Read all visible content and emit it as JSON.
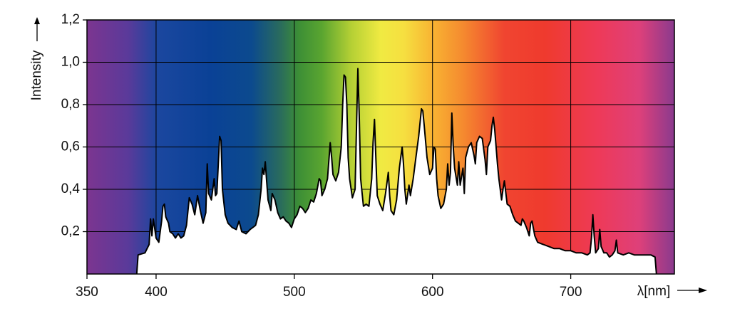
{
  "chart_data": {
    "type": "area",
    "x_label": "λ[nm]",
    "y_label": "Intensity",
    "xlim": [
      350,
      775
    ],
    "ylim": [
      0,
      1.2
    ],
    "xticks": [
      350,
      400,
      500,
      600,
      700
    ],
    "yticks": [
      {
        "value": 0.2,
        "label": "0,2"
      },
      {
        "value": 0.4,
        "label": "0,4"
      },
      {
        "value": 0.6,
        "label": "0,6"
      },
      {
        "value": 0.8,
        "label": "0,8"
      },
      {
        "value": 1.0,
        "label": "1,0"
      },
      {
        "value": 1.2,
        "label": "1,2"
      }
    ],
    "grid": true,
    "x": [
      386,
      387,
      392,
      395,
      396,
      397,
      398,
      400,
      402,
      404,
      405,
      406,
      407,
      409,
      410,
      412,
      414,
      416,
      418,
      420,
      422,
      424,
      426,
      428,
      430,
      432,
      434,
      436,
      437,
      438,
      440,
      442,
      443,
      444,
      445,
      446,
      447,
      448,
      450,
      452,
      455,
      458,
      460,
      462,
      465,
      468,
      470,
      472,
      474,
      476,
      477,
      478,
      479,
      480,
      481,
      483,
      484,
      486,
      488,
      490,
      492,
      494,
      496,
      498,
      500,
      502,
      504,
      506,
      508,
      510,
      512,
      514,
      516,
      518,
      519,
      520,
      522,
      524,
      526,
      527,
      528,
      530,
      532,
      534,
      535,
      536,
      537,
      538,
      539,
      540,
      542,
      544,
      545,
      546,
      547,
      548,
      550,
      552,
      554,
      556,
      557,
      558,
      559,
      560,
      562,
      564,
      566,
      568,
      569,
      570,
      572,
      574,
      576,
      578,
      579,
      580,
      581,
      583,
      584,
      586,
      587,
      588,
      590,
      592,
      593,
      594,
      596,
      598,
      600,
      601,
      602,
      603,
      604,
      606,
      608,
      610,
      611,
      612,
      613,
      614,
      615,
      616,
      618,
      619,
      620,
      622,
      623,
      624,
      626,
      628,
      630,
      631,
      632,
      634,
      636,
      638,
      639,
      640,
      642,
      643,
      644,
      645,
      646,
      647,
      648,
      650,
      651,
      652,
      654,
      656,
      658,
      660,
      662,
      664,
      665,
      666,
      668,
      670,
      671,
      672,
      674,
      676,
      680,
      684,
      688,
      692,
      696,
      700,
      704,
      708,
      712,
      714,
      715,
      716,
      717,
      718,
      720,
      721,
      722,
      724,
      726,
      728,
      730,
      732,
      733,
      734,
      738,
      742,
      746,
      750,
      754,
      758,
      761,
      762
    ],
    "series": [
      {
        "color": "#000000",
        "fill": "#ffffff",
        "values": [
          0,
          0.09,
          0.1,
          0.14,
          0.26,
          0.18,
          0.26,
          0.17,
          0.15,
          0.25,
          0.32,
          0.33,
          0.27,
          0.24,
          0.2,
          0.19,
          0.17,
          0.19,
          0.17,
          0.18,
          0.23,
          0.36,
          0.33,
          0.28,
          0.37,
          0.3,
          0.24,
          0.29,
          0.52,
          0.38,
          0.35,
          0.45,
          0.37,
          0.38,
          0.52,
          0.65,
          0.63,
          0.4,
          0.28,
          0.24,
          0.22,
          0.21,
          0.25,
          0.2,
          0.19,
          0.21,
          0.22,
          0.23,
          0.28,
          0.4,
          0.5,
          0.47,
          0.53,
          0.44,
          0.35,
          0.3,
          0.38,
          0.35,
          0.29,
          0.26,
          0.27,
          0.25,
          0.24,
          0.22,
          0.26,
          0.28,
          0.32,
          0.31,
          0.29,
          0.31,
          0.35,
          0.34,
          0.38,
          0.45,
          0.44,
          0.37,
          0.4,
          0.45,
          0.62,
          0.55,
          0.47,
          0.44,
          0.48,
          0.6,
          0.8,
          0.94,
          0.93,
          0.8,
          0.55,
          0.45,
          0.36,
          0.4,
          0.7,
          0.97,
          0.75,
          0.45,
          0.32,
          0.33,
          0.32,
          0.45,
          0.62,
          0.73,
          0.55,
          0.37,
          0.33,
          0.3,
          0.38,
          0.48,
          0.37,
          0.3,
          0.28,
          0.35,
          0.5,
          0.6,
          0.52,
          0.4,
          0.33,
          0.42,
          0.37,
          0.45,
          0.5,
          0.55,
          0.65,
          0.78,
          0.77,
          0.7,
          0.55,
          0.47,
          0.5,
          0.6,
          0.59,
          0.45,
          0.37,
          0.31,
          0.33,
          0.4,
          0.52,
          0.42,
          0.48,
          0.76,
          0.6,
          0.5,
          0.42,
          0.53,
          0.42,
          0.5,
          0.38,
          0.55,
          0.6,
          0.62,
          0.56,
          0.52,
          0.62,
          0.65,
          0.64,
          0.54,
          0.47,
          0.6,
          0.63,
          0.7,
          0.74,
          0.68,
          0.6,
          0.52,
          0.45,
          0.35,
          0.4,
          0.44,
          0.33,
          0.32,
          0.28,
          0.25,
          0.24,
          0.23,
          0.26,
          0.25,
          0.22,
          0.18,
          0.24,
          0.25,
          0.18,
          0.15,
          0.14,
          0.13,
          0.12,
          0.12,
          0.11,
          0.11,
          0.1,
          0.1,
          0.09,
          0.1,
          0.17,
          0.28,
          0.18,
          0.1,
          0.12,
          0.21,
          0.13,
          0.1,
          0.1,
          0.08,
          0.09,
          0.11,
          0.16,
          0.1,
          0.09,
          0.1,
          0.09,
          0.09,
          0.09,
          0.09,
          0.08,
          0
        ]
      }
    ]
  }
}
